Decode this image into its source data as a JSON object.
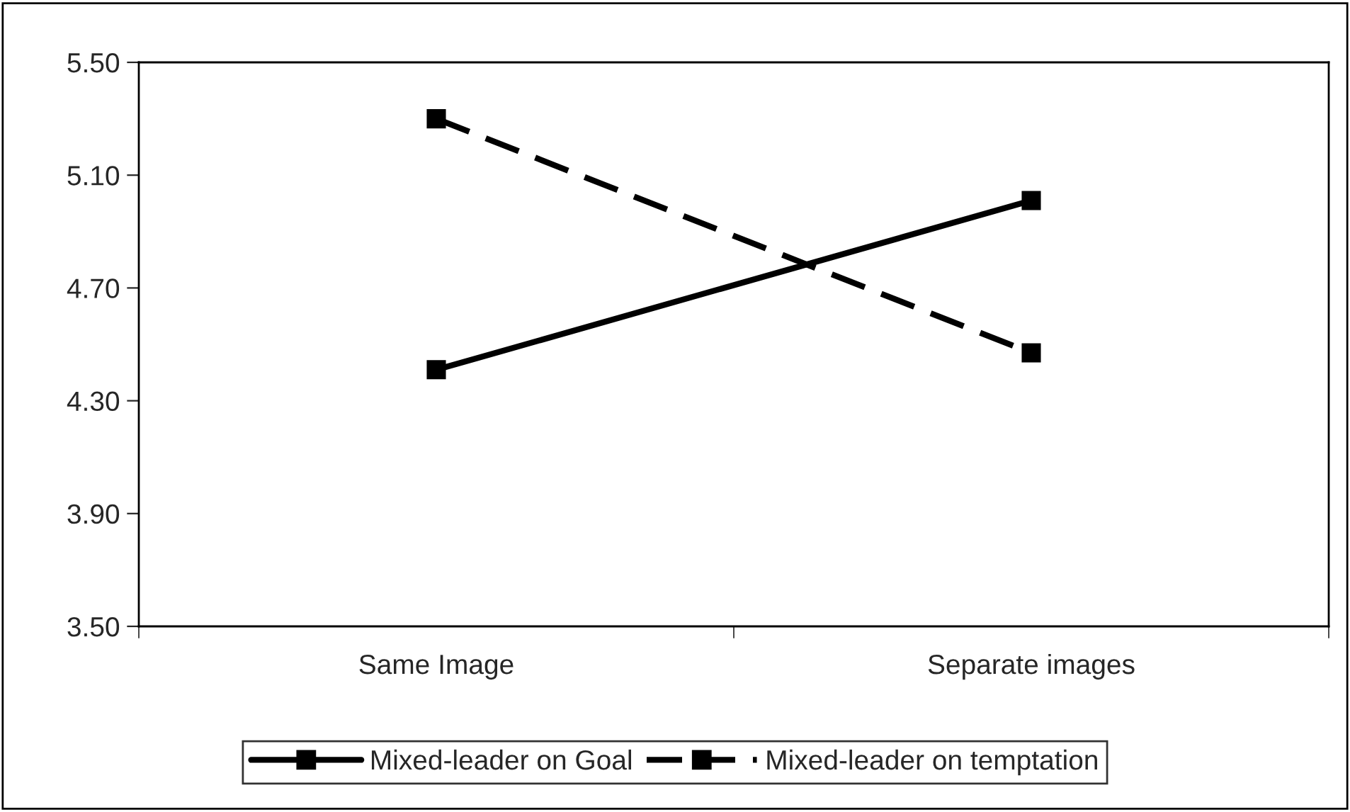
{
  "chart_data": {
    "type": "line",
    "categories": [
      "Same Image",
      "Separate images"
    ],
    "series": [
      {
        "name": "Mixed-leader on Goal",
        "color": "#000000",
        "values": [
          4.41,
          5.01
        ],
        "line_style": "solid"
      },
      {
        "name": "Mixed-leader on temptation",
        "color": "#000000",
        "values": [
          5.3,
          4.47
        ],
        "line_style": "dashed"
      }
    ],
    "ylim": [
      3.5,
      5.5
    ],
    "yticks": [
      {
        "value": 3.5,
        "label": "3.50"
      },
      {
        "value": 3.9,
        "label": "3.90"
      },
      {
        "value": 4.3,
        "label": "4.30"
      },
      {
        "value": 4.7,
        "label": "4.70"
      },
      {
        "value": 5.1,
        "label": "5.10"
      },
      {
        "value": 5.5,
        "label": "5.50"
      }
    ],
    "marker": "square",
    "grid": false,
    "legend": "bottom"
  }
}
